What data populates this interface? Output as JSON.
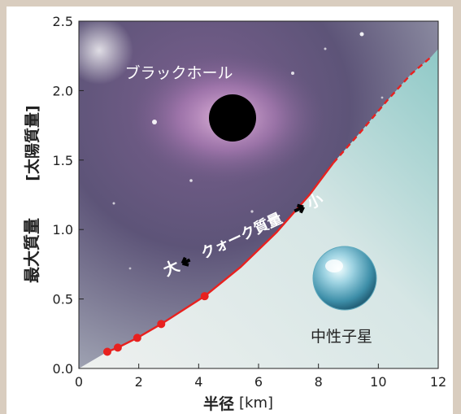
{
  "chart_data": {
    "type": "line",
    "xlabel": "半径",
    "xunit": "[km]",
    "ylabel": "最大質量",
    "yunit": "[太陽質量]",
    "xlim": [
      0,
      12
    ],
    "ylim": [
      0,
      2.5
    ],
    "x_ticks": [
      "0",
      "2",
      "4",
      "6",
      "8",
      "10",
      "12"
    ],
    "y_ticks": [
      "0.0",
      "0.5",
      "1.0",
      "1.5",
      "2.0",
      "2.5"
    ],
    "series": [
      {
        "style": "solid",
        "color": "#e8211f",
        "x": [
          0.95,
          1.3,
          1.95,
          2.75,
          4.2,
          5.4,
          6.6,
          7.7,
          8.5
        ],
        "y": [
          0.12,
          0.15,
          0.22,
          0.32,
          0.52,
          0.73,
          0.98,
          1.25,
          1.48
        ]
      },
      {
        "style": "dashed",
        "color": "#e8211f",
        "x": [
          8.5,
          9.4,
          10.3,
          11.1,
          11.75
        ],
        "y": [
          1.48,
          1.7,
          1.93,
          2.12,
          2.24
        ]
      }
    ],
    "points": [
      {
        "x": 0.95,
        "y": 0.12
      },
      {
        "x": 1.3,
        "y": 0.15
      },
      {
        "x": 1.95,
        "y": 0.22
      },
      {
        "x": 2.75,
        "y": 0.32
      },
      {
        "x": 4.2,
        "y": 0.52
      }
    ],
    "annotations": {
      "black_hole": "ブラックホール",
      "neutron_star": "中性子星",
      "quark_mass": "クォーク質量",
      "large": "大",
      "small": "小"
    },
    "grid": false,
    "legend": "none"
  }
}
